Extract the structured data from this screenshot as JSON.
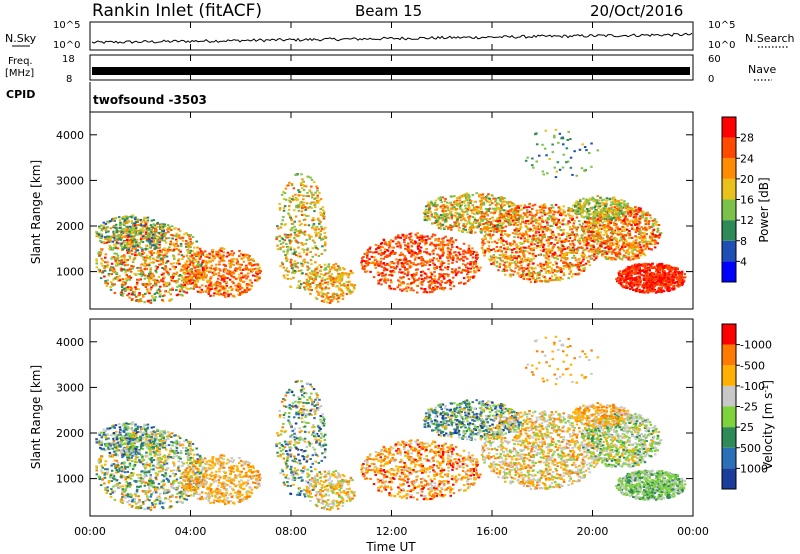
{
  "header": {
    "station": "Rankin Inlet (fitACF)",
    "beam": "Beam 15",
    "date": "20/Oct/2016"
  },
  "nsky_panel": {
    "left_label": "N.Sky",
    "left_ticks": [
      "10^5",
      "10^0"
    ],
    "right_label": "N.Search",
    "right_ticks": [
      "10^5",
      "10^0"
    ]
  },
  "freq_panel": {
    "left_label_top": "Freq.",
    "left_label_unit": "[MHz]",
    "left_ticks": [
      "18",
      "8"
    ],
    "right_label": "Nave",
    "right_ticks": [
      "60",
      "0"
    ]
  },
  "cpid_panel": {
    "label": "CPID",
    "value": "twofsound -3503"
  },
  "chart_data": [
    {
      "type": "heatmap",
      "title": "",
      "xlabel": "Time UT",
      "ylabel": "Slant Range [km]",
      "ylim": [
        180,
        4500
      ],
      "y_ticks": [
        "1000",
        "2000",
        "3000",
        "4000"
      ],
      "x_ticks": [
        "00:00",
        "04:00",
        "08:00",
        "12:00",
        "16:00",
        "20:00",
        "00:00"
      ],
      "colorbar": {
        "label": "Power [dB]",
        "tick_labels": [
          "4",
          "8",
          "12",
          "16",
          "20",
          "24",
          "28"
        ],
        "colors": [
          "#0000ff",
          "#1f4fb4",
          "#2e8b57",
          "#7cc24a",
          "#e8c21a",
          "#ff8c00",
          "#ff4a00",
          "#ff0000"
        ]
      }
    },
    {
      "type": "heatmap",
      "title": "",
      "xlabel": "Time UT",
      "ylabel": "Slant Range [km]",
      "ylim": [
        180,
        4500
      ],
      "y_ticks": [
        "1000",
        "2000",
        "3000",
        "4000"
      ],
      "x_ticks": [
        "00:00",
        "04:00",
        "08:00",
        "12:00",
        "16:00",
        "20:00",
        "00:00"
      ],
      "colorbar": {
        "label": "Velocity [m s^-1]",
        "tick_labels": [
          "1000",
          "500",
          "25",
          "-25",
          "-100",
          "-500",
          "-1000"
        ],
        "colors": [
          "#1a3d9c",
          "#2b6fb8",
          "#2e8b57",
          "#7ed33c",
          "#c8c8c8",
          "#ffb000",
          "#ff7a00",
          "#ff0000"
        ]
      }
    }
  ]
}
